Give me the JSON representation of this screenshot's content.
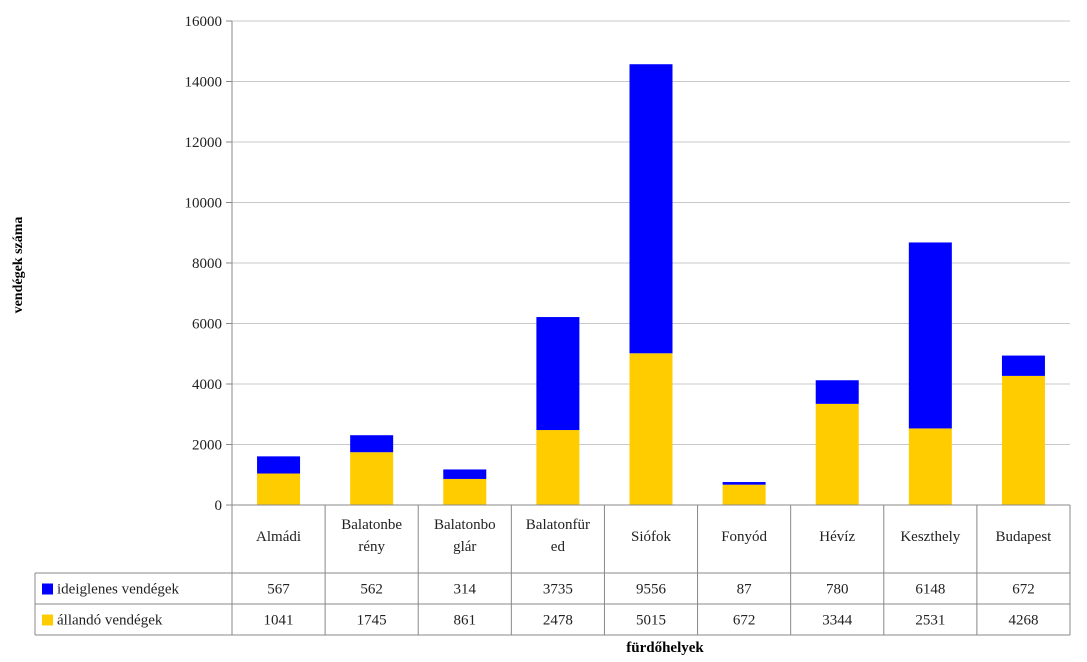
{
  "chart_data": {
    "type": "bar",
    "stacked": true,
    "ylabel": "vendégek száma",
    "xlabel": "fürdőhelyek",
    "ylim": [
      0,
      16000
    ],
    "yticks": [
      0,
      2000,
      4000,
      6000,
      8000,
      10000,
      12000,
      14000,
      16000
    ],
    "grid": true,
    "legend": "data-table",
    "categories": [
      "Almádi",
      "Balatonberény",
      "Balatonboglár",
      "Balatonfüred",
      "Siófok",
      "Fonyód",
      "Hévíz",
      "Keszthely",
      "Budapest"
    ],
    "category_label_lines": [
      [
        "Almádi"
      ],
      [
        "Balatonbe",
        "rény"
      ],
      [
        "Balatonbo",
        "glár"
      ],
      [
        "Balatonfür",
        "ed"
      ],
      [
        "Siófok"
      ],
      [
        "Fonyód"
      ],
      [
        "Hévíz"
      ],
      [
        "Keszthely"
      ],
      [
        "Budapest"
      ]
    ],
    "series": [
      {
        "name": "ideiglenes vendégek",
        "color": "#0000ff",
        "values": [
          567,
          562,
          314,
          3735,
          9556,
          87,
          780,
          6148,
          672
        ]
      },
      {
        "name": "állandó vendégek",
        "color": "#ffcc00",
        "values": [
          1041,
          1745,
          861,
          2478,
          5015,
          672,
          3344,
          2531,
          4268
        ]
      }
    ],
    "stack_order": [
      "állandó vendégek",
      "ideiglenes vendégek"
    ]
  }
}
